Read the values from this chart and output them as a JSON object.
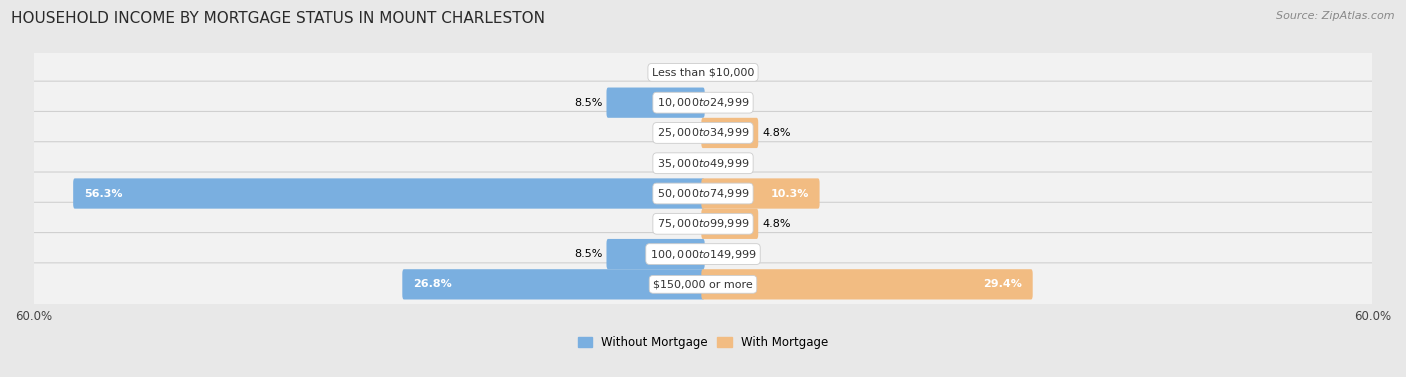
{
  "title": "HOUSEHOLD INCOME BY MORTGAGE STATUS IN MOUNT CHARLESTON",
  "source": "Source: ZipAtlas.com",
  "categories": [
    "Less than $10,000",
    "$10,000 to $24,999",
    "$25,000 to $34,999",
    "$35,000 to $49,999",
    "$50,000 to $74,999",
    "$75,000 to $99,999",
    "$100,000 to $149,999",
    "$150,000 or more"
  ],
  "without_mortgage": [
    0.0,
    8.5,
    0.0,
    0.0,
    56.3,
    0.0,
    8.5,
    26.8
  ],
  "with_mortgage": [
    0.0,
    0.0,
    4.8,
    0.0,
    10.3,
    4.8,
    0.0,
    29.4
  ],
  "color_without": "#7aafe0",
  "color_with": "#f2bc82",
  "axis_limit": 60.0,
  "bg_color": "#e8e8e8",
  "row_bg_color": "#f2f2f2",
  "title_fontsize": 11,
  "source_fontsize": 8,
  "label_fontsize": 8,
  "cat_fontsize": 8,
  "tick_fontsize": 8.5,
  "legend_fontsize": 8.5,
  "bar_label_inside_threshold": 10.0
}
